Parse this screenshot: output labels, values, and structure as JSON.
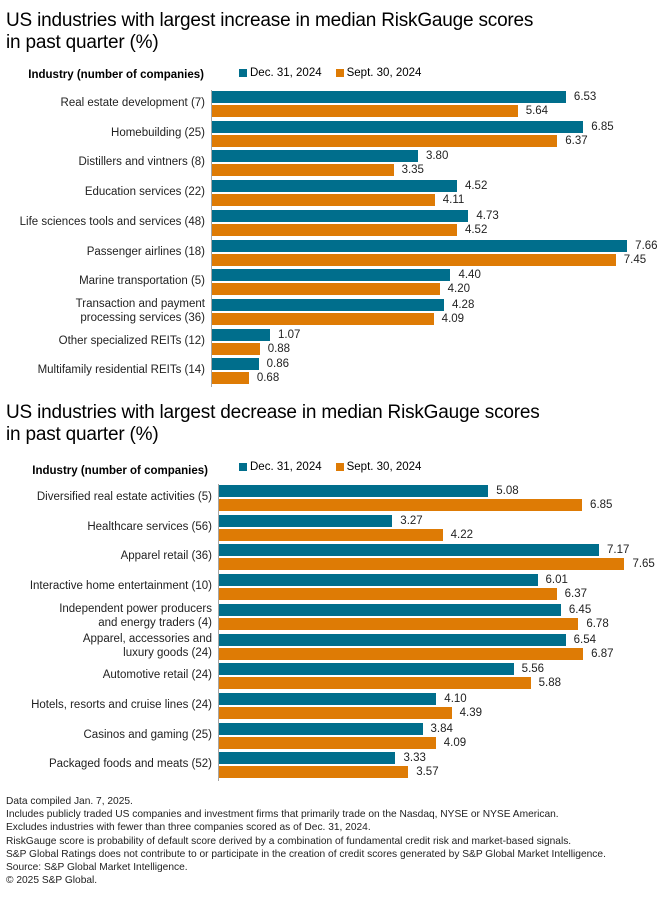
{
  "colors": {
    "dec": "#006e8c",
    "sept": "#de7b05",
    "axis": "#a6a6a6"
  },
  "chart_data": [
    {
      "type": "bar",
      "orientation": "horizontal",
      "title": "US industries with largest increase in median RiskGauge scores in past quarter (%)",
      "title_lines": [
        "US industries with largest increase in median RiskGauge scores",
        "in past quarter (%)"
      ],
      "category_header": "Industry (number of companies)",
      "legend": [
        "Dec. 31, 2024",
        "Sept. 30, 2024"
      ],
      "legend_position": "top",
      "xlim": [
        0,
        8
      ],
      "grid": false,
      "categories": [
        "Real estate development (7)",
        "Homebuilding (25)",
        "Distillers and vintners (8)",
        "Education services (22)",
        "Life sciences tools and services (48)",
        "Passenger airlines (18)",
        "Marine transportation (5)",
        "Transaction and payment processing services (36)",
        "Other specialized REITs (12)",
        "Multifamily residential REITs (14)"
      ],
      "category_lines": [
        [
          "Real estate development (7)"
        ],
        [
          "Homebuilding (25)"
        ],
        [
          "Distillers and vintners (8)"
        ],
        [
          "Education services (22)"
        ],
        [
          "Life sciences tools and services (48)"
        ],
        [
          "Passenger airlines (18)"
        ],
        [
          "Marine transportation (5)"
        ],
        [
          "Transaction and payment",
          "processing services (36)"
        ],
        [
          "Other specialized REITs (12)"
        ],
        [
          "Multifamily residential REITs (14)"
        ]
      ],
      "series": [
        {
          "name": "Dec. 31, 2024",
          "values": [
            6.53,
            6.85,
            3.8,
            4.52,
            4.73,
            7.66,
            4.4,
            4.28,
            1.07,
            0.86
          ]
        },
        {
          "name": "Sept. 30, 2024",
          "values": [
            5.64,
            6.37,
            3.35,
            4.11,
            4.52,
            7.45,
            4.2,
            4.09,
            0.88,
            0.68
          ]
        }
      ]
    },
    {
      "type": "bar",
      "orientation": "horizontal",
      "title": "US industries with largest decrease in median RiskGauge scores in past quarter (%)",
      "title_lines": [
        "US industries with largest decrease in median RiskGauge scores",
        "in past quarter (%)"
      ],
      "category_header": "Industry (number of companies)",
      "legend": [
        "Dec. 31, 2024",
        "Sept. 30, 2024"
      ],
      "legend_position": "top",
      "xlim": [
        0,
        8
      ],
      "grid": false,
      "categories": [
        "Diversified real estate activities (5)",
        "Healthcare services (56)",
        "Apparel retail (36)",
        "Interactive home entertainment (10)",
        "Independent power producers and energy traders (4)",
        "Apparel, accessories and luxury goods (24)",
        "Automotive retail (24)",
        "Hotels, resorts and cruise lines (24)",
        "Casinos and gaming (25)",
        "Packaged foods and meats (52)"
      ],
      "category_lines": [
        [
          "Diversified real estate activities (5)"
        ],
        [
          "Healthcare services (56)"
        ],
        [
          "Apparel retail (36)"
        ],
        [
          "Interactive home entertainment (10)"
        ],
        [
          "Independent power producers",
          "and energy traders (4)"
        ],
        [
          "Apparel, accessories and",
          "luxury goods (24)"
        ],
        [
          "Automotive retail (24)"
        ],
        [
          "Hotels, resorts and cruise lines (24)"
        ],
        [
          "Casinos and gaming (25)"
        ],
        [
          "Packaged foods and meats (52)"
        ]
      ],
      "series": [
        {
          "name": "Dec. 31, 2024",
          "values": [
            5.08,
            3.27,
            7.17,
            6.01,
            6.45,
            6.54,
            5.56,
            4.1,
            3.84,
            3.33
          ]
        },
        {
          "name": "Sept. 30, 2024",
          "values": [
            6.85,
            4.22,
            7.65,
            6.37,
            6.78,
            6.87,
            5.88,
            4.39,
            4.09,
            3.57
          ]
        }
      ]
    }
  ],
  "notes": [
    "Data compiled Jan. 7, 2025.",
    "Includes publicly traded US companies and investment firms that primarily trade on the Nasdaq, NYSE or NYSE American.",
    "Excludes industries with fewer than three companies scored as of Dec. 31, 2024.",
    "RiskGauge score is probability of default score derived by a combination of fundamental credit risk and market-based signals.",
    "S&P Global Ratings does not contribute to or participate in the creation of credit scores generated by S&P Global Market Intelligence.",
    "Source: S&P Global Market Intelligence.",
    "© 2025 S&P Global."
  ]
}
